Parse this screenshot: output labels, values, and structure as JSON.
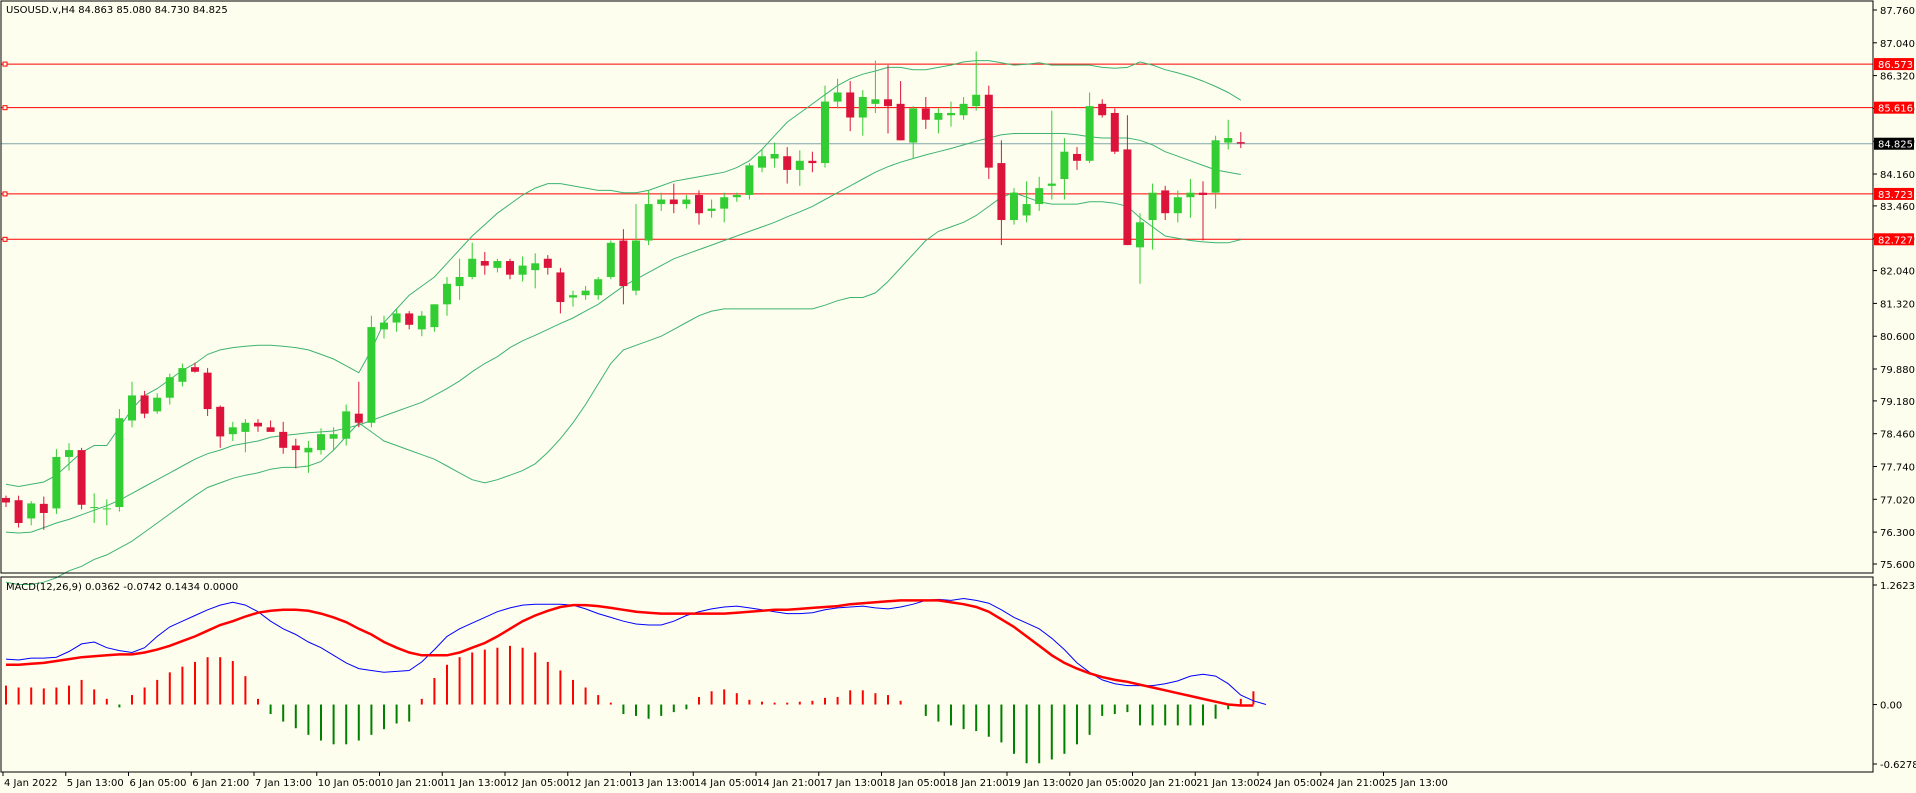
{
  "chart_data": {
    "type": "candlestick",
    "title": "USOUSD.v,H4  84.863 85.080 84.730 84.825",
    "price_axis": {
      "ticks": [
        "87.760",
        "87.040",
        "86.320",
        "85.600",
        "84.880",
        "84.160",
        "83.460",
        "82.740",
        "82.040",
        "81.320",
        "80.600",
        "79.880",
        "79.180",
        "78.460",
        "77.740",
        "77.020",
        "76.300",
        "75.600"
      ],
      "range": [
        75.6,
        87.76
      ]
    },
    "time_axis": {
      "ticks": [
        "4 Jan 2022",
        "5 Jan 13:00",
        "6 Jan 05:00",
        "6 Jan 21:00",
        "7 Jan 13:00",
        "10 Jan 05:00",
        "10 Jan 21:00",
        "11 Jan 13:00",
        "12 Jan 05:00",
        "12 Jan 21:00",
        "13 Jan 13:00",
        "14 Jan 05:00",
        "14 Jan 21:00",
        "17 Jan 13:00",
        "18 Jan 05:00",
        "18 Jan 21:00",
        "19 Jan 13:00",
        "20 Jan 05:00",
        "20 Jan 21:00",
        "21 Jan 13:00",
        "24 Jan 05:00",
        "24 Jan 21:00",
        "25 Jan 13:00"
      ]
    },
    "levels": [
      {
        "label": "86.573",
        "value": 86.573,
        "color": "#FF0000"
      },
      {
        "label": "85.616",
        "value": 85.616,
        "color": "#FF0000"
      },
      {
        "label": "83.723",
        "value": 83.723,
        "color": "#FF0000"
      },
      {
        "label": "82.727",
        "value": 82.727,
        "color": "#FF0000"
      }
    ],
    "current_price": {
      "label": "84.825",
      "value": 84.825
    },
    "candles": [
      {
        "o": 77.05,
        "h": 77.1,
        "l": 76.85,
        "c": 76.95
      },
      {
        "o": 77.0,
        "h": 77.1,
        "l": 76.4,
        "c": 76.5
      },
      {
        "o": 76.6,
        "h": 76.98,
        "l": 76.45,
        "c": 76.93
      },
      {
        "o": 76.92,
        "h": 77.08,
        "l": 76.35,
        "c": 76.72
      },
      {
        "o": 76.82,
        "h": 78.12,
        "l": 76.7,
        "c": 77.95
      },
      {
        "o": 77.95,
        "h": 78.25,
        "l": 77.65,
        "c": 78.1
      },
      {
        "o": 78.1,
        "h": 78.15,
        "l": 76.8,
        "c": 76.9
      },
      {
        "o": 76.85,
        "h": 77.15,
        "l": 76.5,
        "c": 76.85
      },
      {
        "o": 76.8,
        "h": 77.02,
        "l": 76.45,
        "c": 76.82
      },
      {
        "o": 76.85,
        "h": 79.0,
        "l": 76.75,
        "c": 78.8
      },
      {
        "o": 78.75,
        "h": 79.6,
        "l": 78.6,
        "c": 79.3
      },
      {
        "o": 79.3,
        "h": 79.4,
        "l": 78.8,
        "c": 78.9
      },
      {
        "o": 78.95,
        "h": 79.35,
        "l": 78.9,
        "c": 79.25
      },
      {
        "o": 79.25,
        "h": 79.78,
        "l": 79.1,
        "c": 79.7
      },
      {
        "o": 79.6,
        "h": 80.0,
        "l": 79.5,
        "c": 79.9
      },
      {
        "o": 79.92,
        "h": 80.02,
        "l": 79.8,
        "c": 79.82
      },
      {
        "o": 79.8,
        "h": 79.9,
        "l": 78.85,
        "c": 79.0
      },
      {
        "o": 79.05,
        "h": 79.08,
        "l": 78.15,
        "c": 78.4
      },
      {
        "o": 78.45,
        "h": 78.72,
        "l": 78.3,
        "c": 78.6
      },
      {
        "o": 78.5,
        "h": 78.78,
        "l": 78.05,
        "c": 78.7
      },
      {
        "o": 78.7,
        "h": 78.78,
        "l": 78.5,
        "c": 78.62
      },
      {
        "o": 78.6,
        "h": 78.75,
        "l": 78.55,
        "c": 78.5
      },
      {
        "o": 78.5,
        "h": 78.72,
        "l": 78.02,
        "c": 78.15
      },
      {
        "o": 78.2,
        "h": 78.35,
        "l": 77.7,
        "c": 78.1
      },
      {
        "o": 78.05,
        "h": 78.3,
        "l": 77.6,
        "c": 78.15
      },
      {
        "o": 78.1,
        "h": 78.58,
        "l": 78.0,
        "c": 78.45
      },
      {
        "o": 78.35,
        "h": 78.6,
        "l": 78.1,
        "c": 78.45
      },
      {
        "o": 78.35,
        "h": 79.1,
        "l": 78.2,
        "c": 78.95
      },
      {
        "o": 78.9,
        "h": 79.6,
        "l": 78.6,
        "c": 78.7
      },
      {
        "o": 78.7,
        "h": 81.05,
        "l": 78.6,
        "c": 80.8
      },
      {
        "o": 80.75,
        "h": 81.05,
        "l": 80.55,
        "c": 80.9
      },
      {
        "o": 80.9,
        "h": 81.2,
        "l": 80.7,
        "c": 81.1
      },
      {
        "o": 81.1,
        "h": 81.15,
        "l": 80.75,
        "c": 80.85
      },
      {
        "o": 80.75,
        "h": 81.15,
        "l": 80.6,
        "c": 81.05
      },
      {
        "o": 80.8,
        "h": 81.3,
        "l": 80.7,
        "c": 81.3
      },
      {
        "o": 81.3,
        "h": 81.9,
        "l": 81.05,
        "c": 81.75
      },
      {
        "o": 81.7,
        "h": 82.3,
        "l": 81.4,
        "c": 81.9
      },
      {
        "o": 81.9,
        "h": 82.65,
        "l": 81.85,
        "c": 82.3
      },
      {
        "o": 82.25,
        "h": 82.45,
        "l": 81.95,
        "c": 82.15
      },
      {
        "o": 82.1,
        "h": 82.3,
        "l": 82.0,
        "c": 82.25
      },
      {
        "o": 82.25,
        "h": 82.3,
        "l": 81.85,
        "c": 81.95
      },
      {
        "o": 81.95,
        "h": 82.35,
        "l": 81.8,
        "c": 82.15
      },
      {
        "o": 82.05,
        "h": 82.42,
        "l": 81.65,
        "c": 82.2
      },
      {
        "o": 82.3,
        "h": 82.38,
        "l": 81.95,
        "c": 82.1
      },
      {
        "o": 82.0,
        "h": 82.1,
        "l": 81.1,
        "c": 81.35
      },
      {
        "o": 81.45,
        "h": 81.6,
        "l": 81.25,
        "c": 81.5
      },
      {
        "o": 81.5,
        "h": 81.7,
        "l": 81.4,
        "c": 81.6
      },
      {
        "o": 81.5,
        "h": 81.9,
        "l": 81.4,
        "c": 81.85
      },
      {
        "o": 81.9,
        "h": 82.7,
        "l": 81.85,
        "c": 82.65
      },
      {
        "o": 82.7,
        "h": 82.95,
        "l": 81.3,
        "c": 81.7
      },
      {
        "o": 81.6,
        "h": 83.5,
        "l": 81.5,
        "c": 82.7
      },
      {
        "o": 82.7,
        "h": 83.8,
        "l": 82.6,
        "c": 83.5
      },
      {
        "o": 83.5,
        "h": 83.75,
        "l": 83.35,
        "c": 83.6
      },
      {
        "o": 83.6,
        "h": 83.95,
        "l": 83.3,
        "c": 83.5
      },
      {
        "o": 83.5,
        "h": 83.7,
        "l": 83.4,
        "c": 83.6
      },
      {
        "o": 83.7,
        "h": 83.8,
        "l": 83.05,
        "c": 83.3
      },
      {
        "o": 83.35,
        "h": 83.6,
        "l": 83.2,
        "c": 83.4
      },
      {
        "o": 83.4,
        "h": 83.75,
        "l": 83.1,
        "c": 83.65
      },
      {
        "o": 83.65,
        "h": 83.75,
        "l": 83.55,
        "c": 83.7
      },
      {
        "o": 83.7,
        "h": 84.4,
        "l": 83.6,
        "c": 84.35
      },
      {
        "o": 84.3,
        "h": 84.7,
        "l": 84.2,
        "c": 84.55
      },
      {
        "o": 84.5,
        "h": 84.85,
        "l": 84.3,
        "c": 84.6
      },
      {
        "o": 84.55,
        "h": 84.75,
        "l": 83.95,
        "c": 84.25
      },
      {
        "o": 84.25,
        "h": 84.68,
        "l": 83.9,
        "c": 84.45
      },
      {
        "o": 84.45,
        "h": 84.65,
        "l": 84.2,
        "c": 84.4
      },
      {
        "o": 84.4,
        "h": 86.1,
        "l": 84.3,
        "c": 85.75
      },
      {
        "o": 85.75,
        "h": 86.25,
        "l": 85.6,
        "c": 85.95
      },
      {
        "o": 85.95,
        "h": 86.2,
        "l": 85.1,
        "c": 85.4
      },
      {
        "o": 85.4,
        "h": 86.0,
        "l": 85.0,
        "c": 85.85
      },
      {
        "o": 85.7,
        "h": 86.65,
        "l": 85.5,
        "c": 85.8
      },
      {
        "o": 85.8,
        "h": 86.55,
        "l": 85.05,
        "c": 85.65
      },
      {
        "o": 85.7,
        "h": 86.2,
        "l": 84.9,
        "c": 84.9
      },
      {
        "o": 84.85,
        "h": 85.65,
        "l": 84.5,
        "c": 85.6
      },
      {
        "o": 85.6,
        "h": 85.85,
        "l": 85.15,
        "c": 85.35
      },
      {
        "o": 85.35,
        "h": 85.6,
        "l": 85.05,
        "c": 85.5
      },
      {
        "o": 85.45,
        "h": 85.75,
        "l": 85.2,
        "c": 85.5
      },
      {
        "o": 85.45,
        "h": 85.85,
        "l": 85.35,
        "c": 85.7
      },
      {
        "o": 85.65,
        "h": 86.85,
        "l": 85.55,
        "c": 85.9
      },
      {
        "o": 85.9,
        "h": 86.1,
        "l": 84.05,
        "c": 84.3
      },
      {
        "o": 84.4,
        "h": 84.9,
        "l": 82.6,
        "c": 83.15
      },
      {
        "o": 83.15,
        "h": 83.85,
        "l": 83.05,
        "c": 83.75
      },
      {
        "o": 83.25,
        "h": 84.0,
        "l": 83.1,
        "c": 83.5
      },
      {
        "o": 83.5,
        "h": 84.1,
        "l": 83.35,
        "c": 83.85
      },
      {
        "o": 83.9,
        "h": 85.55,
        "l": 83.6,
        "c": 83.95
      },
      {
        "o": 84.05,
        "h": 84.95,
        "l": 83.6,
        "c": 84.65
      },
      {
        "o": 84.6,
        "h": 84.75,
        "l": 84.25,
        "c": 84.45
      },
      {
        "o": 84.45,
        "h": 85.95,
        "l": 84.4,
        "c": 85.65
      },
      {
        "o": 85.7,
        "h": 85.8,
        "l": 85.4,
        "c": 85.45
      },
      {
        "o": 85.5,
        "h": 85.6,
        "l": 84.6,
        "c": 84.65
      },
      {
        "o": 84.7,
        "h": 85.45,
        "l": 82.6,
        "c": 82.6
      },
      {
        "o": 82.55,
        "h": 83.3,
        "l": 81.75,
        "c": 83.1
      },
      {
        "o": 83.15,
        "h": 83.95,
        "l": 82.5,
        "c": 83.75
      },
      {
        "o": 83.8,
        "h": 83.9,
        "l": 83.15,
        "c": 83.3
      },
      {
        "o": 83.3,
        "h": 83.8,
        "l": 83.1,
        "c": 83.65
      },
      {
        "o": 83.65,
        "h": 84.05,
        "l": 83.2,
        "c": 83.75
      },
      {
        "o": 83.75,
        "h": 84.0,
        "l": 82.7,
        "c": 83.7
      },
      {
        "o": 83.75,
        "h": 85.0,
        "l": 83.4,
        "c": 84.9
      },
      {
        "o": 84.85,
        "h": 85.35,
        "l": 84.7,
        "c": 84.95
      },
      {
        "o": 84.86,
        "h": 85.08,
        "l": 84.73,
        "c": 84.83
      }
    ],
    "bollinger": {
      "upper": [
        77.35,
        77.3,
        77.35,
        77.4,
        77.55,
        77.8,
        78.05,
        78.2,
        78.2,
        78.6,
        79.0,
        79.3,
        79.45,
        79.65,
        79.85,
        80.0,
        80.2,
        80.3,
        80.35,
        80.38,
        80.4,
        80.4,
        80.38,
        80.35,
        80.3,
        80.2,
        80.1,
        79.95,
        79.8,
        80.3,
        80.9,
        81.2,
        81.5,
        81.7,
        81.9,
        82.2,
        82.5,
        82.8,
        83.05,
        83.3,
        83.5,
        83.7,
        83.85,
        83.95,
        83.95,
        83.9,
        83.85,
        83.8,
        83.8,
        83.75,
        83.75,
        83.8,
        83.9,
        84.0,
        84.05,
        84.1,
        84.15,
        84.2,
        84.3,
        84.45,
        84.7,
        85.0,
        85.3,
        85.5,
        85.7,
        85.9,
        86.1,
        86.25,
        86.35,
        86.42,
        86.5,
        86.5,
        86.45,
        86.45,
        86.5,
        86.55,
        86.62,
        86.65,
        86.65,
        86.6,
        86.55,
        86.57,
        86.6,
        86.55,
        86.55,
        86.55,
        86.55,
        86.5,
        86.48,
        86.5,
        86.62,
        86.55,
        86.45,
        86.38,
        86.3,
        86.2,
        86.08,
        85.95,
        85.78
      ],
      "middle": [
        76.3,
        76.28,
        76.3,
        76.4,
        76.5,
        76.58,
        76.68,
        76.78,
        76.88,
        77.0,
        77.15,
        77.3,
        77.45,
        77.6,
        77.75,
        77.9,
        78.02,
        78.1,
        78.2,
        78.25,
        78.3,
        78.38,
        78.42,
        78.45,
        78.48,
        78.5,
        78.52,
        78.58,
        78.65,
        78.75,
        78.85,
        78.95,
        79.05,
        79.15,
        79.3,
        79.45,
        79.62,
        79.82,
        80.0,
        80.15,
        80.35,
        80.5,
        80.62,
        80.75,
        80.88,
        81.0,
        81.15,
        81.3,
        81.5,
        81.7,
        81.85,
        82.0,
        82.15,
        82.3,
        82.4,
        82.5,
        82.6,
        82.7,
        82.8,
        82.9,
        83.0,
        83.1,
        83.22,
        83.33,
        83.45,
        83.6,
        83.75,
        83.9,
        84.05,
        84.2,
        84.32,
        84.42,
        84.5,
        84.58,
        84.65,
        84.72,
        84.8,
        84.88,
        84.95,
        85.02,
        85.05,
        85.05,
        85.05,
        85.05,
        85.05,
        85.02,
        84.98,
        84.95,
        84.95,
        84.95,
        84.9,
        84.8,
        84.65,
        84.55,
        84.45,
        84.35,
        84.25,
        84.2,
        84.15
      ],
      "lower": [
        75.2,
        75.15,
        75.15,
        75.2,
        75.3,
        75.45,
        75.55,
        75.7,
        75.8,
        75.95,
        76.1,
        76.3,
        76.5,
        76.7,
        76.9,
        77.1,
        77.28,
        77.38,
        77.48,
        77.55,
        77.6,
        77.68,
        77.72,
        77.72,
        77.75,
        77.85,
        78.1,
        78.4,
        78.7,
        78.5,
        78.3,
        78.2,
        78.1,
        78.0,
        77.9,
        77.75,
        77.6,
        77.45,
        77.38,
        77.45,
        77.55,
        77.65,
        77.8,
        78.05,
        78.35,
        78.7,
        79.1,
        79.55,
        80.0,
        80.3,
        80.4,
        80.5,
        80.6,
        80.75,
        80.9,
        81.05,
        81.15,
        81.2,
        81.2,
        81.2,
        81.2,
        81.2,
        81.2,
        81.2,
        81.2,
        81.28,
        81.38,
        81.45,
        81.45,
        81.55,
        81.8,
        82.1,
        82.4,
        82.7,
        82.9,
        83.0,
        83.1,
        83.25,
        83.45,
        83.65,
        83.75,
        83.65,
        83.55,
        83.5,
        83.5,
        83.5,
        83.55,
        83.55,
        83.52,
        83.45,
        83.2,
        83.0,
        82.8,
        82.75,
        82.7,
        82.67,
        82.65,
        82.65,
        82.72
      ]
    },
    "macd_panel": {
      "label": "MACD(12,26,9) 0.0362 -0.0742 0.1434 0.0000",
      "ticks": [
        "1.2623",
        "0.00",
        "-0.6278"
      ],
      "range": [
        -0.6278,
        1.2623
      ],
      "histogram": [
        0.2,
        0.18,
        0.18,
        0.17,
        0.18,
        0.2,
        0.26,
        0.16,
        0.06,
        -0.03,
        0.1,
        0.18,
        0.26,
        0.34,
        0.4,
        0.45,
        0.5,
        0.5,
        0.46,
        0.3,
        0.06,
        -0.1,
        -0.18,
        -0.25,
        -0.32,
        -0.38,
        -0.42,
        -0.42,
        -0.38,
        -0.32,
        -0.26,
        -0.2,
        -0.18,
        0.06,
        0.28,
        0.42,
        0.5,
        0.55,
        0.58,
        0.6,
        0.62,
        0.6,
        0.55,
        0.45,
        0.36,
        0.26,
        0.18,
        0.1,
        0.02,
        -0.1,
        -0.12,
        -0.15,
        -0.12,
        -0.08,
        -0.05,
        0.08,
        0.14,
        0.16,
        0.12,
        0.05,
        0.03,
        0.02,
        0.02,
        0.03,
        0.04,
        0.07,
        0.08,
        0.15,
        0.15,
        0.12,
        0.1,
        0.04,
        0.0,
        -0.12,
        -0.18,
        -0.22,
        -0.26,
        -0.28,
        -0.34,
        -0.4,
        -0.52,
        -0.62,
        -0.62,
        -0.58,
        -0.52,
        -0.42,
        -0.32,
        -0.12,
        -0.1,
        -0.08,
        -0.22,
        -0.22,
        -0.22,
        -0.22,
        -0.22,
        -0.22,
        -0.15,
        -0.05,
        0.06,
        0.14
      ],
      "macd": [
        0.48,
        0.47,
        0.49,
        0.49,
        0.5,
        0.56,
        0.64,
        0.66,
        0.6,
        0.57,
        0.55,
        0.6,
        0.72,
        0.82,
        0.88,
        0.94,
        1.0,
        1.05,
        1.08,
        1.05,
        0.98,
        0.88,
        0.8,
        0.74,
        0.66,
        0.6,
        0.52,
        0.44,
        0.38,
        0.36,
        0.34,
        0.35,
        0.36,
        0.45,
        0.58,
        0.72,
        0.8,
        0.86,
        0.92,
        0.98,
        1.02,
        1.05,
        1.06,
        1.06,
        1.06,
        1.05,
        1.01,
        0.96,
        0.92,
        0.88,
        0.85,
        0.84,
        0.84,
        0.88,
        0.94,
        0.98,
        1.01,
        1.03,
        1.04,
        1.02,
        1.0,
        0.98,
        0.96,
        0.96,
        0.97,
        1.0,
        1.02,
        1.03,
        1.04,
        1.02,
        1.01,
        1.03,
        1.06,
        1.1,
        1.11,
        1.1,
        1.12,
        1.1,
        1.07,
        1.0,
        0.92,
        0.86,
        0.8,
        0.7,
        0.58,
        0.44,
        0.34,
        0.26,
        0.22,
        0.2,
        0.2,
        0.2,
        0.22,
        0.25,
        0.3,
        0.32,
        0.3,
        0.22,
        0.1,
        0.04,
        0.0
      ],
      "signal": [
        0.42,
        0.42,
        0.43,
        0.44,
        0.46,
        0.48,
        0.5,
        0.51,
        0.52,
        0.53,
        0.53,
        0.55,
        0.58,
        0.62,
        0.67,
        0.72,
        0.78,
        0.84,
        0.88,
        0.93,
        0.97,
        0.99,
        1.0,
        1.0,
        0.99,
        0.96,
        0.92,
        0.87,
        0.8,
        0.74,
        0.66,
        0.6,
        0.55,
        0.52,
        0.52,
        0.52,
        0.55,
        0.6,
        0.65,
        0.72,
        0.8,
        0.88,
        0.94,
        0.99,
        1.03,
        1.05,
        1.05,
        1.04,
        1.02,
        1.0,
        0.98,
        0.97,
        0.96,
        0.96,
        0.96,
        0.96,
        0.96,
        0.96,
        0.97,
        0.98,
        0.99,
        1.0,
        1.0,
        1.01,
        1.02,
        1.03,
        1.04,
        1.06,
        1.07,
        1.08,
        1.09,
        1.1,
        1.1,
        1.1,
        1.1,
        1.08,
        1.06,
        1.03,
        0.98,
        0.9,
        0.82,
        0.72,
        0.62,
        0.52,
        0.44,
        0.38,
        0.33,
        0.29,
        0.26,
        0.24,
        0.21,
        0.18,
        0.15,
        0.12,
        0.09,
        0.06,
        0.03,
        0.0,
        -0.01,
        -0.01
      ]
    }
  }
}
